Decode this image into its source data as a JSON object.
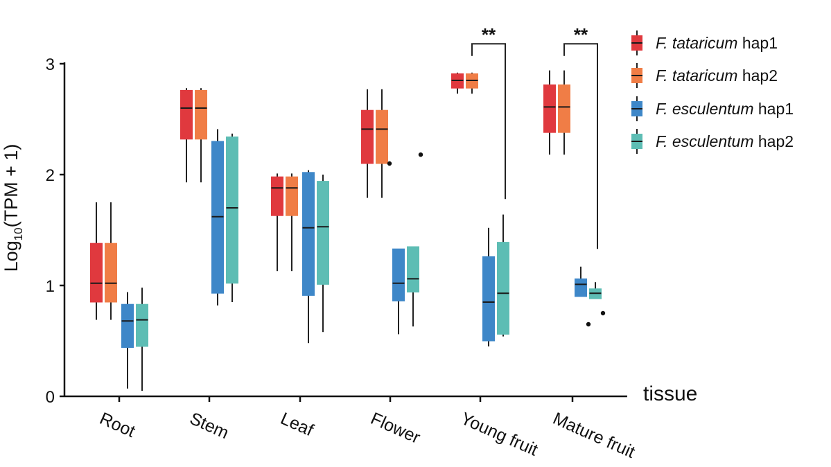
{
  "chart_data": {
    "type": "boxplot",
    "title": "",
    "xlabel": "tissue",
    "ylabel_parts": {
      "base": "Log",
      "subscript": "10",
      "rest": "(TPM + 1)"
    },
    "ylim": [
      0,
      3
    ],
    "yticks": [
      "0",
      "1",
      "2",
      "3"
    ],
    "categories": [
      "Root",
      "Stem",
      "Leaf",
      "Flower",
      "Young fruit",
      "Mature fruit"
    ],
    "colors": {
      "tat_hap1": "#e0393e",
      "tat_hap2": "#f07d46",
      "esc_hap1": "#3e87c8",
      "esc_hap2": "#5dbdb4"
    },
    "series": [
      {
        "key": "tat_hap1",
        "name_italic": "F. tataricum",
        "name_rest": " hap1",
        "boxes": [
          {
            "min": 0.69,
            "q1": 0.85,
            "median": 1.02,
            "q3": 1.38,
            "max": 1.75
          },
          {
            "min": 1.93,
            "q1": 2.32,
            "median": 2.6,
            "q3": 2.76,
            "max": 2.78
          },
          {
            "min": 1.13,
            "q1": 1.63,
            "median": 1.88,
            "q3": 1.98,
            "max": 2.01
          },
          {
            "min": 1.79,
            "q1": 2.1,
            "median": 2.41,
            "q3": 2.58,
            "max": 2.77
          },
          {
            "min": 2.73,
            "q1": 2.78,
            "median": 2.85,
            "q3": 2.91,
            "max": 2.92
          },
          {
            "min": 2.18,
            "q1": 2.38,
            "median": 2.61,
            "q3": 2.81,
            "max": 2.94
          }
        ],
        "outliers": [
          [],
          [],
          [],
          [],
          [],
          []
        ]
      },
      {
        "key": "tat_hap2",
        "name_italic": "F. tataricum",
        "name_rest": " hap2",
        "boxes": [
          {
            "min": 0.69,
            "q1": 0.85,
            "median": 1.02,
            "q3": 1.38,
            "max": 1.75
          },
          {
            "min": 1.93,
            "q1": 2.32,
            "median": 2.6,
            "q3": 2.76,
            "max": 2.78
          },
          {
            "min": 1.13,
            "q1": 1.63,
            "median": 1.88,
            "q3": 1.98,
            "max": 2.01
          },
          {
            "min": 1.79,
            "q1": 2.1,
            "median": 2.41,
            "q3": 2.58,
            "max": 2.77
          },
          {
            "min": 2.73,
            "q1": 2.78,
            "median": 2.85,
            "q3": 2.91,
            "max": 2.92
          },
          {
            "min": 2.18,
            "q1": 2.38,
            "median": 2.61,
            "q3": 2.81,
            "max": 2.94
          }
        ],
        "outliers": [
          [],
          [],
          [],
          [
            2.1
          ],
          [],
          []
        ]
      },
      {
        "key": "esc_hap1",
        "name_italic": "F. esculentum",
        "name_rest": " hap1",
        "boxes": [
          {
            "min": 0.07,
            "q1": 0.44,
            "median": 0.68,
            "q3": 0.83,
            "max": 0.94
          },
          {
            "min": 0.82,
            "q1": 0.93,
            "median": 1.62,
            "q3": 2.3,
            "max": 2.41
          },
          {
            "min": 0.48,
            "q1": 0.91,
            "median": 1.52,
            "q3": 2.02,
            "max": 2.04
          },
          {
            "min": 0.56,
            "q1": 0.86,
            "median": 1.02,
            "q3": 1.33,
            "max": 1.33
          },
          {
            "min": 0.45,
            "q1": 0.5,
            "median": 0.85,
            "q3": 1.26,
            "max": 1.52
          },
          {
            "min": 0.9,
            "q1": 0.9,
            "median": 1.01,
            "q3": 1.06,
            "max": 1.17
          }
        ],
        "outliers": [
          [],
          [],
          [],
          [],
          [],
          [
            0.65
          ]
        ]
      },
      {
        "key": "esc_hap2",
        "name_italic": "F. esculentum",
        "name_rest": " hap2",
        "boxes": [
          {
            "min": 0.05,
            "q1": 0.45,
            "median": 0.69,
            "q3": 0.83,
            "max": 0.98
          },
          {
            "min": 0.85,
            "q1": 1.02,
            "median": 1.7,
            "q3": 2.34,
            "max": 2.37
          },
          {
            "min": 0.58,
            "q1": 1.01,
            "median": 1.53,
            "q3": 1.94,
            "max": 2.0
          },
          {
            "min": 0.63,
            "q1": 0.94,
            "median": 1.06,
            "q3": 1.35,
            "max": 1.35
          },
          {
            "min": 0.54,
            "q1": 0.56,
            "median": 0.93,
            "q3": 1.39,
            "max": 1.64
          },
          {
            "min": 0.88,
            "q1": 0.88,
            "median": 0.93,
            "q3": 0.97,
            "max": 1.03
          }
        ],
        "outliers": [
          [],
          [],
          [],
          [
            2.18
          ],
          [],
          [
            0.75
          ]
        ]
      }
    ],
    "significance": [
      {
        "label": "**",
        "category_index": 4,
        "bracket_top": 3.18,
        "left_drop": 3.07,
        "right_drop": 1.78
      },
      {
        "label": "**",
        "category_index": 5,
        "bracket_top": 3.18,
        "left_drop": 3.07,
        "right_drop": 1.33
      }
    ]
  }
}
